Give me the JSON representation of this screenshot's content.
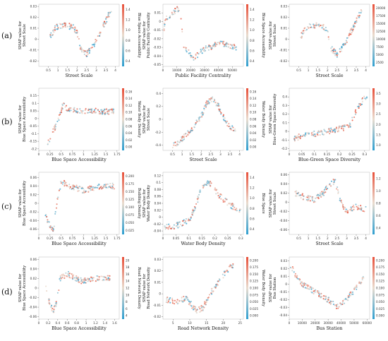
{
  "row_labels": [
    "(a)",
    "(b)",
    "(c)",
    "(d)"
  ],
  "colors": {
    "low": "#2f9fd0",
    "mid": "#e9dccf",
    "high": "#e8503a"
  },
  "chart_data": [
    {
      "type": "scatter",
      "xlabel": "Street Scale",
      "ylabel": "SHAP value for\nStreet Scale",
      "clabel": "Blue Space Accessibility",
      "xlim": [
        0,
        4.2
      ],
      "ylim": [
        -0.025,
        0.032
      ],
      "xticks": [
        0.5,
        1.0,
        1.5,
        2.0,
        2.5,
        3.0,
        3.5,
        4.0
      ],
      "yticks": [
        -0.02,
        -0.01,
        0.0,
        0.01,
        0.02,
        0.03
      ],
      "cticks": [
        "0.4",
        "0.6",
        "0.8",
        "1.0",
        "1.2",
        "1.4"
      ],
      "curve": [
        [
          0.6,
          0.002
        ],
        [
          0.9,
          0.011
        ],
        [
          1.3,
          0.013
        ],
        [
          1.8,
          0.011
        ],
        [
          2.0,
          0.006
        ],
        [
          2.2,
          -0.009
        ],
        [
          2.5,
          -0.014
        ],
        [
          2.9,
          -0.005
        ],
        [
          3.4,
          0.013
        ],
        [
          3.8,
          0.028
        ]
      ]
    },
    {
      "type": "scatter",
      "xlabel": "Public Facility Centrality",
      "ylabel": "SHAP value for\nPublic Facility Centrality",
      "clabel": "Blue Space Accessibility",
      "xlim": [
        0,
        58000
      ],
      "ylim": [
        -0.052,
        0.02
      ],
      "xticks": [
        0,
        10000,
        20000,
        30000,
        40000,
        50000
      ],
      "yticks": [
        -0.05,
        -0.04,
        -0.03,
        -0.02,
        -0.01,
        0.0,
        0.01
      ],
      "cticks": [
        "0.4",
        "0.6",
        "0.8",
        "1.0",
        "1.2",
        "1.4"
      ],
      "curve": [
        [
          500,
          -0.01
        ],
        [
          2000,
          0.002
        ],
        [
          6000,
          0.009
        ],
        [
          12000,
          0.016
        ],
        [
          15000,
          -0.03
        ],
        [
          22000,
          -0.042
        ],
        [
          30000,
          -0.032
        ],
        [
          42000,
          -0.025
        ],
        [
          53000,
          -0.03
        ]
      ]
    },
    {
      "type": "scatter",
      "xlabel": "Street Scale",
      "ylabel": "SHAP value for\nStreet Scale",
      "clabel": "medical Facility Centrality",
      "xlim": [
        0,
        4.2
      ],
      "ylim": [
        -0.025,
        0.032
      ],
      "xticks": [
        0.5,
        1.0,
        1.5,
        2.0,
        2.5,
        3.0,
        3.5,
        4.0
      ],
      "yticks": [
        -0.02,
        -0.01,
        0.0,
        0.01,
        0.02,
        0.03
      ],
      "cticks": [
        "2500",
        "5000",
        "7500",
        "10000",
        "12500",
        "15000",
        "17500",
        "20000"
      ],
      "curve": [
        [
          0.6,
          0.002
        ],
        [
          0.9,
          0.011
        ],
        [
          1.3,
          0.013
        ],
        [
          1.8,
          0.011
        ],
        [
          2.0,
          0.006
        ],
        [
          2.2,
          -0.009
        ],
        [
          2.5,
          -0.014
        ],
        [
          2.9,
          -0.005
        ],
        [
          3.4,
          0.013
        ],
        [
          3.8,
          0.028
        ]
      ]
    },
    {
      "type": "scatter",
      "xlabel": "Blue Space Accessibility",
      "ylabel": "SHAP value for\nBlue Space Accessibility",
      "clabel": "Water Body Density",
      "xlim": [
        0,
        1.8
      ],
      "ylim": [
        -0.21,
        0.2
      ],
      "xticks": [
        0.0,
        0.25,
        0.5,
        0.75,
        1.0,
        1.25,
        1.5,
        1.75
      ],
      "yticks": [
        -0.2,
        -0.15,
        -0.1,
        -0.05,
        0.0,
        0.05,
        0.1,
        0.15
      ],
      "cticks": [
        "0.00",
        "0.02",
        "0.04",
        "0.06",
        "0.08",
        "0.10",
        "0.12",
        "0.14",
        "0.16"
      ],
      "curve": [
        [
          0.2,
          -0.17
        ],
        [
          0.3,
          -0.1
        ],
        [
          0.45,
          0.0
        ],
        [
          0.55,
          0.1
        ],
        [
          0.65,
          0.06
        ],
        [
          0.9,
          0.05
        ],
        [
          1.2,
          0.05
        ],
        [
          1.5,
          0.045
        ],
        [
          1.7,
          0.05
        ]
      ]
    },
    {
      "type": "scatter",
      "xlabel": "Street Scale",
      "ylabel": "SHAP value for\nStreet Scale",
      "clabel": "Water Body Density",
      "xlim": [
        0,
        4.2
      ],
      "ylim": [
        -0.48,
        0.48
      ],
      "xticks": [
        0.5,
        1.0,
        1.5,
        2.0,
        2.5,
        3.0,
        3.5,
        4.0
      ],
      "yticks": [
        -0.4,
        -0.2,
        0.0,
        0.2,
        0.4
      ],
      "cticks": [
        "0.00",
        "0.02",
        "0.04",
        "0.06",
        "0.08",
        "0.10",
        "0.12",
        "0.14",
        "0.16"
      ],
      "curve": [
        [
          0.5,
          -0.42
        ],
        [
          1.0,
          -0.3
        ],
        [
          1.5,
          -0.15
        ],
        [
          2.0,
          0.05
        ],
        [
          2.3,
          0.25
        ],
        [
          2.6,
          0.32
        ],
        [
          2.9,
          0.2
        ],
        [
          3.3,
          -0.05
        ],
        [
          3.8,
          -0.2
        ]
      ]
    },
    {
      "type": "scatter",
      "xlabel": "Blue-Green Space Diversity",
      "ylabel": "SHAP value for\nBlue-Green Space Diversity",
      "clabel": "Street Scale",
      "xlim": [
        0,
        0.32
      ],
      "ylim": [
        -0.22,
        0.5
      ],
      "xticks": [
        0.0,
        0.05,
        0.1,
        0.15,
        0.2,
        0.25,
        0.3
      ],
      "yticks": [
        -0.2,
        -0.1,
        0.0,
        0.1,
        0.2,
        0.3,
        0.4
      ],
      "cticks": [
        "1.0",
        "1.5",
        "2.0",
        "2.5",
        "3.0",
        "3.5"
      ],
      "curve": [
        [
          0.01,
          -0.1
        ],
        [
          0.05,
          -0.05
        ],
        [
          0.1,
          -0.03
        ],
        [
          0.15,
          0.0
        ],
        [
          0.2,
          0.03
        ],
        [
          0.24,
          0.06
        ],
        [
          0.26,
          0.2
        ],
        [
          0.29,
          0.35
        ],
        [
          0.31,
          0.42
        ]
      ]
    },
    {
      "type": "scatter",
      "xlabel": "Blue Space Accessibility",
      "ylabel": "SHAP value for\nBlue Space Accessibility",
      "clabel": "Building Density",
      "xlim": [
        0,
        1.8
      ],
      "ylim": [
        -0.072,
        0.072
      ],
      "xticks": [
        0.0,
        0.25,
        0.5,
        0.75,
        1.0,
        1.25,
        1.5,
        1.75
      ],
      "yticks": [
        -0.06,
        -0.04,
        -0.02,
        0.0,
        0.02,
        0.04,
        0.06
      ],
      "cticks": [
        "0.025",
        "0.050",
        "0.075",
        "0.100",
        "0.125",
        "0.150",
        "0.175",
        "0.200"
      ],
      "curve": [
        [
          0.15,
          -0.03
        ],
        [
          0.25,
          -0.05
        ],
        [
          0.33,
          -0.06
        ],
        [
          0.4,
          0.0
        ],
        [
          0.5,
          0.05
        ],
        [
          0.7,
          0.04
        ],
        [
          1.0,
          0.03
        ],
        [
          1.4,
          0.04
        ],
        [
          1.7,
          0.04
        ]
      ]
    },
    {
      "type": "scatter",
      "xlabel": "Water Body Density",
      "ylabel": "SHAP value for\nWater Body Density",
      "clabel": "Blue Space",
      "xlim": [
        0,
        0.31
      ],
      "ylim": [
        -0.05,
        0.13
      ],
      "xticks": [
        0.0,
        0.05,
        0.1,
        0.15,
        0.2,
        0.25,
        0.3
      ],
      "yticks": [
        -0.04,
        -0.02,
        0.0,
        0.02,
        0.04,
        0.06,
        0.08,
        0.1,
        0.12
      ],
      "cticks": [
        "0.4",
        "0.6",
        "0.8",
        "1.0",
        "1.2",
        "1.4"
      ],
      "curve": [
        [
          0.0,
          -0.03
        ],
        [
          0.05,
          -0.025
        ],
        [
          0.1,
          -0.01
        ],
        [
          0.13,
          0.04
        ],
        [
          0.15,
          0.09
        ],
        [
          0.18,
          0.1
        ],
        [
          0.22,
          0.06
        ],
        [
          0.27,
          0.03
        ],
        [
          0.3,
          0.02
        ]
      ]
    },
    {
      "type": "scatter",
      "xlabel": "Street Scale",
      "ylabel": "SHAP value for\nStreet Scale",
      "clabel": "Blue Space",
      "xlim": [
        0,
        4.2
      ],
      "ylim": [
        -0.07,
        0.065
      ],
      "xticks": [
        0.5,
        1.0,
        1.5,
        2.0,
        2.5,
        3.0,
        3.5,
        4.0
      ],
      "yticks": [
        -0.06,
        -0.04,
        -0.02,
        0.0,
        0.02,
        0.04,
        0.06
      ],
      "cticks": [
        "0.4",
        "0.6",
        "0.8",
        "1.0",
        "1.2"
      ],
      "curve": [
        [
          0.3,
          0.02
        ],
        [
          0.8,
          0.01
        ],
        [
          1.3,
          0.005
        ],
        [
          1.8,
          0.02
        ],
        [
          2.1,
          0.04
        ],
        [
          2.4,
          0.045
        ],
        [
          2.7,
          0.0
        ],
        [
          3.0,
          -0.02
        ],
        [
          3.5,
          -0.01
        ],
        [
          4.0,
          -0.015
        ]
      ]
    },
    {
      "type": "scatter",
      "xlabel": "Blue Space Accessibility",
      "ylabel": "SHAP value for\nBlue Space Accessibility",
      "clabel": "Road Network Density",
      "xlim": [
        0,
        1.7
      ],
      "ylim": [
        -0.065,
        0.065
      ],
      "xticks": [
        0.0,
        0.2,
        0.4,
        0.6,
        0.8,
        1.0,
        1.2,
        1.4,
        1.6
      ],
      "yticks": [
        -0.06,
        -0.04,
        -0.02,
        0.0,
        0.02,
        0.04,
        0.06
      ],
      "cticks": [
        "4",
        "6",
        "8",
        "10",
        "12",
        "14",
        "16",
        "18",
        "20"
      ],
      "curve": [
        [
          0.15,
          0.0
        ],
        [
          0.22,
          -0.03
        ],
        [
          0.3,
          -0.05
        ],
        [
          0.38,
          -0.03
        ],
        [
          0.45,
          0.02
        ],
        [
          0.6,
          0.03
        ],
        [
          0.9,
          0.015
        ],
        [
          1.2,
          0.02
        ],
        [
          1.5,
          0.02
        ]
      ]
    },
    {
      "type": "scatter",
      "xlabel": "Road Network Density",
      "ylabel": "SHAP value for\nRoad Network Density",
      "clabel": "Water Body Density",
      "xlim": [
        2,
        26
      ],
      "ylim": [
        -0.022,
        0.032
      ],
      "xticks": [
        5,
        10,
        15,
        20,
        25
      ],
      "yticks": [
        -0.02,
        -0.01,
        0.0,
        0.01,
        0.02,
        0.03
      ],
      "cticks": [
        "0.000",
        "0.025",
        "0.050",
        "0.075",
        "0.100",
        "0.125",
        "0.150",
        "0.175",
        "0.200"
      ],
      "curve": [
        [
          3,
          -0.005
        ],
        [
          6,
          -0.007
        ],
        [
          9,
          -0.004
        ],
        [
          12,
          -0.015
        ],
        [
          14,
          -0.012
        ],
        [
          16,
          0.0
        ],
        [
          19,
          0.012
        ],
        [
          21,
          0.02
        ],
        [
          23,
          0.025
        ]
      ]
    },
    {
      "type": "scatter",
      "xlabel": "Bus Station",
      "ylabel": "SHAP value for\nBus Station",
      "clabel": "Water Body Density",
      "xlim": [
        0,
        62000
      ],
      "ylim": [
        -0.045,
        0.035
      ],
      "xticks": [
        0,
        10000,
        20000,
        30000,
        40000,
        50000,
        60000
      ],
      "yticks": [
        -0.04,
        -0.03,
        -0.02,
        -0.01,
        0.0,
        0.01,
        0.02,
        0.03
      ],
      "cticks": [
        "0.000",
        "0.025",
        "0.050",
        "0.075",
        "0.100",
        "0.125",
        "0.150",
        "0.175",
        "0.200"
      ],
      "curve": [
        [
          1000,
          0.025
        ],
        [
          5000,
          0.01
        ],
        [
          10000,
          0.0
        ],
        [
          20000,
          -0.01
        ],
        [
          30000,
          -0.02
        ],
        [
          38000,
          -0.03
        ],
        [
          45000,
          -0.018
        ],
        [
          52000,
          -0.005
        ],
        [
          58000,
          0.01
        ]
      ]
    }
  ]
}
